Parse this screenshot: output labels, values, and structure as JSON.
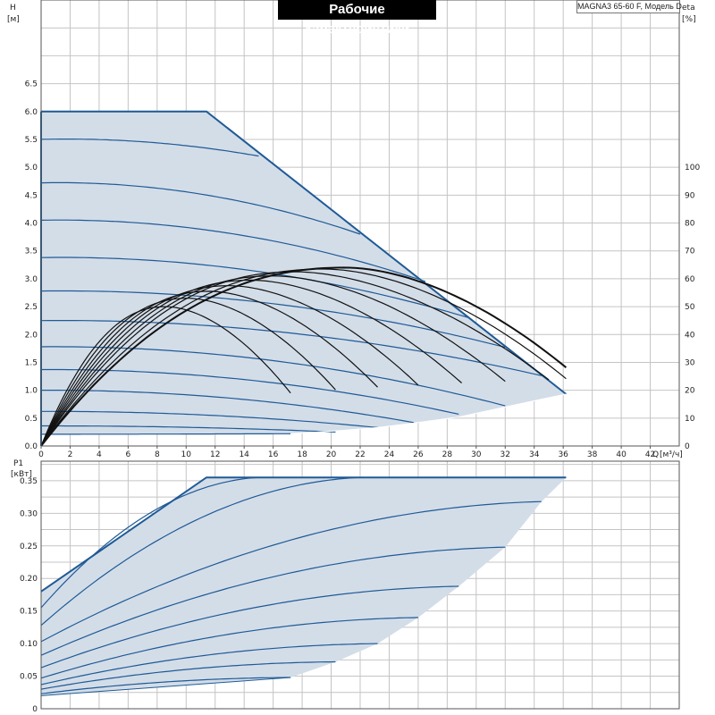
{
  "header": {
    "title": "Рабочие характеристики",
    "model": "MAGNA3 65-60 F, Модель D"
  },
  "chart_data": [
    {
      "type": "line",
      "name": "head-efficiency",
      "x_label": "Q",
      "x_unit": "[м³/ч]",
      "y_label": "H",
      "y_unit": "[м]",
      "y2_label": "eta",
      "y2_unit": "[%]",
      "xlim": [
        0,
        44
      ],
      "ylim": [
        0,
        8
      ],
      "y2lim": [
        0,
        160
      ],
      "x_ticks": [
        "0",
        "2",
        "4",
        "6",
        "8",
        "10",
        "12",
        "14",
        "16",
        "18",
        "20",
        "22",
        "24",
        "26",
        "28",
        "30",
        "32",
        "34",
        "36",
        "38",
        "40",
        "42"
      ],
      "y_ticks": [
        "0.0",
        "0.5",
        "1.0",
        "1.5",
        "2.0",
        "2.5",
        "3.0",
        "3.5",
        "4.0",
        "4.5",
        "5.0",
        "5.5",
        "6.0",
        "6.5"
      ],
      "y2_ticks": [
        "0",
        "10",
        "20",
        "30",
        "40",
        "50",
        "60",
        "70",
        "80",
        "90",
        "100"
      ],
      "grid": true,
      "max_curve": [
        [
          0,
          6.0
        ],
        [
          11.4,
          6.0
        ],
        [
          36.2,
          0.93
        ]
      ],
      "head_curves": [
        {
          "H0": 5.5,
          "qmax": 15.0,
          "hend": 5.2
        },
        {
          "H0": 4.72,
          "qmax": 22.0,
          "hend": 3.8
        },
        {
          "H0": 4.05,
          "qmax": 26.5,
          "hend": 2.95
        },
        {
          "H0": 3.38,
          "qmax": 29.5,
          "hend": 2.3
        },
        {
          "H0": 2.78,
          "qmax": 32.0,
          "hend": 1.77
        },
        {
          "H0": 2.25,
          "qmax": 34.7,
          "hend": 1.25
        },
        {
          "H0": 1.78,
          "qmax": 32.0,
          "hend": 0.72
        },
        {
          "H0": 1.37,
          "qmax": 28.8,
          "hend": 0.57
        },
        {
          "H0": 1.0,
          "qmax": 25.7,
          "hend": 0.42
        },
        {
          "H0": 0.62,
          "qmax": 23.2,
          "hend": 0.33
        },
        {
          "H0": 0.36,
          "qmax": 20.3,
          "hend": 0.25
        },
        {
          "H0": 0.21,
          "qmax": 17.2,
          "hend": 0.22
        }
      ],
      "area_bottom": [
        [
          17.2,
          0.22
        ],
        [
          20.3,
          0.27
        ],
        [
          23.2,
          0.33
        ],
        [
          25.7,
          0.41
        ],
        [
          28.8,
          0.52
        ],
        [
          32.0,
          0.7
        ],
        [
          34.7,
          0.85
        ],
        [
          36.2,
          0.93
        ]
      ],
      "eta_curves": [
        {
          "qmax": 17.2,
          "peak_q": 8.6,
          "peak": 50
        },
        {
          "qmax": 20.3,
          "peak_q": 10.1,
          "peak": 53
        },
        {
          "qmax": 23.2,
          "peak_q": 11.6,
          "peak": 55.5
        },
        {
          "qmax": 26.0,
          "peak_q": 13.0,
          "peak": 57.5
        },
        {
          "qmax": 29.0,
          "peak_q": 14.5,
          "peak": 59.5
        },
        {
          "qmax": 32.0,
          "peak_q": 16.0,
          "peak": 61
        },
        {
          "qmax": 35.0,
          "peak_q": 17.5,
          "peak": 62.5
        },
        {
          "qmax": 36.2,
          "peak_q": 19.5,
          "peak": 63.5
        },
        {
          "qmax": 36.2,
          "peak_q": 21.0,
          "peak": 64,
          "bold": true
        }
      ]
    },
    {
      "type": "line",
      "name": "power",
      "y_label": "P1",
      "y_unit": "[кВт]",
      "xlim": [
        0,
        44
      ],
      "ylim": [
        0,
        0.38
      ],
      "y_ticks": [
        "0",
        "0.05",
        "0.10",
        "0.15",
        "0.20",
        "0.25",
        "0.30",
        "0.35"
      ],
      "grid": true,
      "max_curve": [
        [
          0,
          0.18
        ],
        [
          11.4,
          0.355
        ],
        [
          36.2,
          0.355
        ]
      ],
      "power_curves": [
        {
          "p0": 0.155,
          "qend": 15.0,
          "pend": 0.355
        },
        {
          "p0": 0.128,
          "qend": 22.0,
          "pend": 0.355
        },
        {
          "p0": 0.103,
          "qend": 34.5,
          "pend": 0.318
        },
        {
          "p0": 0.082,
          "qend": 32.0,
          "pend": 0.248
        },
        {
          "p0": 0.063,
          "qend": 28.8,
          "pend": 0.188
        },
        {
          "p0": 0.047,
          "qend": 26.0,
          "pend": 0.14
        },
        {
          "p0": 0.037,
          "qend": 23.2,
          "pend": 0.1
        },
        {
          "p0": 0.03,
          "qend": 20.3,
          "pend": 0.072
        },
        {
          "p0": 0.023,
          "qend": 17.2,
          "pend": 0.048
        }
      ],
      "area_bottom": [
        [
          17.2,
          0.048
        ],
        [
          20.3,
          0.072
        ],
        [
          23.2,
          0.1
        ],
        [
          26.0,
          0.14
        ],
        [
          28.8,
          0.188
        ],
        [
          32.0,
          0.248
        ],
        [
          34.5,
          0.318
        ],
        [
          36.2,
          0.355
        ]
      ]
    }
  ],
  "colors": {
    "area_fill": "#d3dde8",
    "curve": "#1f5a96",
    "eta": "#111111",
    "grid": "#c4c4c4"
  }
}
